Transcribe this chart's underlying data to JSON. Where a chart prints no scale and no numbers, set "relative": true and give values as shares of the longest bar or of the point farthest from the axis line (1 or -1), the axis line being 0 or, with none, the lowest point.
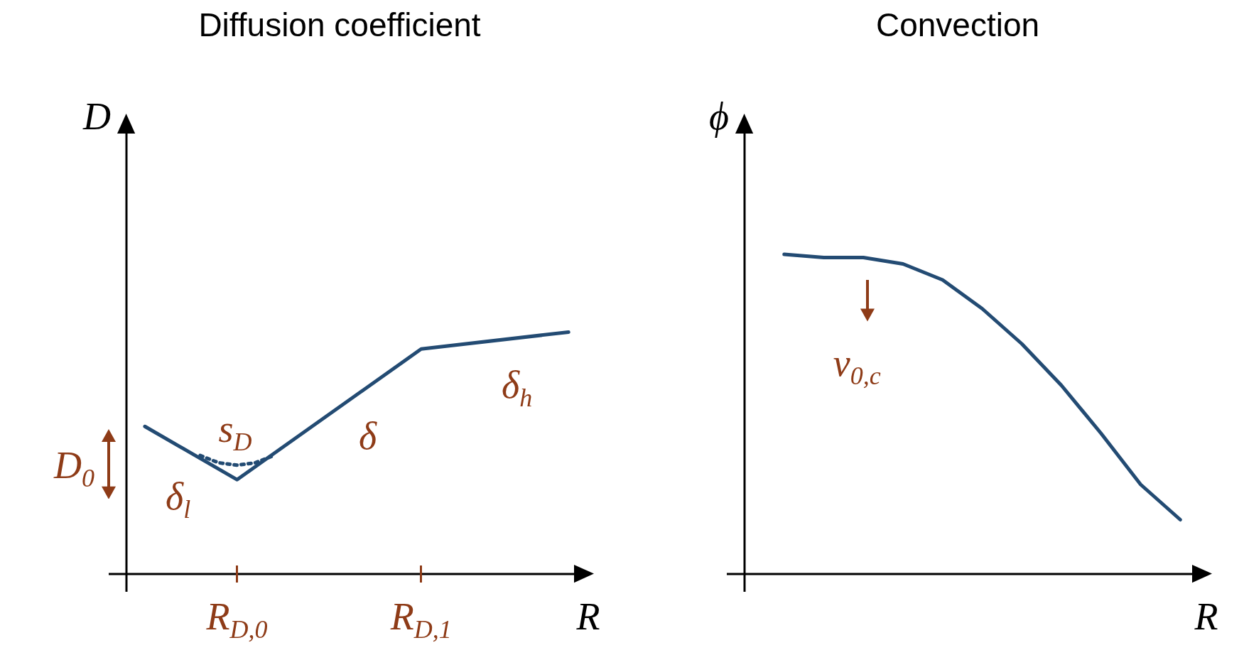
{
  "chart_data": [
    {
      "type": "line",
      "title": "Diffusion coefficient",
      "xlabel": "R",
      "ylabel": "D",
      "relative": true,
      "tick_labels": "x",
      "legend": false,
      "marker": "none",
      "categories": [
        null,
        null,
        null,
        null,
        null,
        "R$_{D,0}$",
        null,
        null,
        null,
        null,
        null,
        null,
        null,
        null,
        null,
        "R$_{D,1}$",
        null,
        null,
        null,
        null,
        null,
        null,
        null,
        null
      ],
      "series": [
        {
          "color": "#234b73",
          "values": [
            0.61,
            null,
            null,
            null,
            null,
            0.39,
            null,
            null,
            null,
            null,
            null,
            null,
            null,
            null,
            null,
            0.93,
            null,
            null,
            null,
            null,
            null,
            null,
            null,
            1
          ],
          "line_style": "solid"
        },
        {
          "color": "#234b73",
          "values": [
            null,
            null,
            null,
            0.49,
            0.46,
            0.45,
            0.46,
            0.49,
            null,
            null,
            null,
            null,
            null,
            null,
            null,
            null,
            null,
            null,
            null,
            null,
            null,
            null,
            null,
            null
          ],
          "line_style": "dotted"
        }
      ],
      "annotations": [
        "D$_{0}$",
        "δ$_{l}$",
        "s$_{D}$",
        "δ",
        "δ$_{h}$"
      ]
    },
    {
      "type": "line",
      "title": "Convection",
      "xlabel": "R",
      "ylabel": "ϕ",
      "relative": true,
      "tick_labels": false,
      "legend": false,
      "marker": "none",
      "categories": [
        null,
        null,
        null,
        null,
        null,
        null,
        null,
        null,
        null,
        null,
        null
      ],
      "series": [
        {
          "color": "#234b73",
          "values": [
            1,
            0.99,
            0.99,
            0.97,
            0.92,
            0.83,
            0.72,
            0.59,
            0.44,
            0.28,
            0.17
          ],
          "line_style": "solid"
        }
      ],
      "annotations": [
        "v$_{0,c}$"
      ]
    }
  ]
}
